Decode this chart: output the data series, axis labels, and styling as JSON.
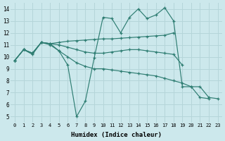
{
  "xlabel": "Humidex (Indice chaleur)",
  "bg_color": "#cce8ec",
  "grid_color": "#b5d5d9",
  "line_color": "#2e7d72",
  "xlim": [
    -0.5,
    23.5
  ],
  "ylim": [
    4.5,
    14.5
  ],
  "xticks": [
    0,
    1,
    2,
    3,
    4,
    5,
    6,
    7,
    8,
    9,
    10,
    11,
    12,
    13,
    14,
    15,
    16,
    17,
    18,
    19,
    20,
    21,
    22,
    23
  ],
  "yticks": [
    5,
    6,
    7,
    8,
    9,
    10,
    11,
    12,
    13,
    14
  ],
  "s1_x": [
    0,
    1,
    2,
    3,
    4,
    5,
    6,
    7,
    8,
    9,
    10,
    11,
    12,
    13,
    14,
    15,
    16,
    17,
    18,
    19,
    20,
    21,
    22
  ],
  "s1_y": [
    9.7,
    10.6,
    10.2,
    11.2,
    11.1,
    10.5,
    9.3,
    5.0,
    6.3,
    9.9,
    13.3,
    13.2,
    12.0,
    13.3,
    14.0,
    13.2,
    13.5,
    14.1,
    13.0,
    7.5,
    7.5,
    6.6,
    6.5
  ],
  "s2_x": [
    0,
    1,
    2,
    3,
    4,
    5,
    6,
    7,
    8,
    9,
    10,
    11,
    12,
    13,
    14,
    15,
    16,
    17,
    18
  ],
  "s2_y": [
    9.7,
    10.6,
    10.3,
    11.2,
    11.1,
    11.2,
    11.3,
    11.35,
    11.4,
    11.45,
    11.5,
    11.5,
    11.55,
    11.6,
    11.65,
    11.7,
    11.75,
    11.8,
    12.0
  ],
  "s3_x": [
    0,
    1,
    2,
    3,
    4,
    5,
    6,
    7,
    8,
    9,
    10,
    11,
    12,
    13,
    14,
    15,
    16,
    17,
    18,
    19
  ],
  "s3_y": [
    9.7,
    10.6,
    10.3,
    11.2,
    11.1,
    11.0,
    10.8,
    10.6,
    10.4,
    10.3,
    10.3,
    10.4,
    10.5,
    10.6,
    10.6,
    10.5,
    10.4,
    10.3,
    10.2,
    9.3
  ],
  "s4_x": [
    0,
    1,
    2,
    3,
    4,
    5,
    6,
    7,
    8,
    9,
    10,
    11,
    12,
    13,
    14,
    15,
    16,
    17,
    18,
    19,
    20,
    21,
    22,
    23
  ],
  "s4_y": [
    9.7,
    10.6,
    10.3,
    11.2,
    11.0,
    10.5,
    10.0,
    9.5,
    9.2,
    9.0,
    9.0,
    8.9,
    8.8,
    8.7,
    8.6,
    8.5,
    8.4,
    8.2,
    8.0,
    7.8,
    7.5,
    7.5,
    6.6,
    6.5
  ]
}
